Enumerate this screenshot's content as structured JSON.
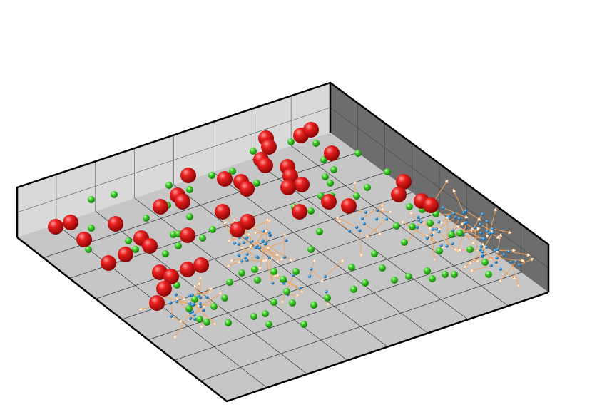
{
  "scene": {
    "colors": {
      "background": "#ffffff",
      "floor": "#c4c4c4",
      "back_wall": "#d6d6d6",
      "right_wall": "#6e6e6e",
      "grid_line": "#2a2a2a",
      "frame": "#000000",
      "large_particle": "#e01010",
      "medium_particle": "#33cc22",
      "small_particle": "#2a86d0",
      "vector_arrow": "#f2a25a"
    },
    "icons": [
      "red-sphere-icon",
      "green-sphere-icon",
      "blue-sphere-icon",
      "orange-arrow-icon"
    ]
  }
}
